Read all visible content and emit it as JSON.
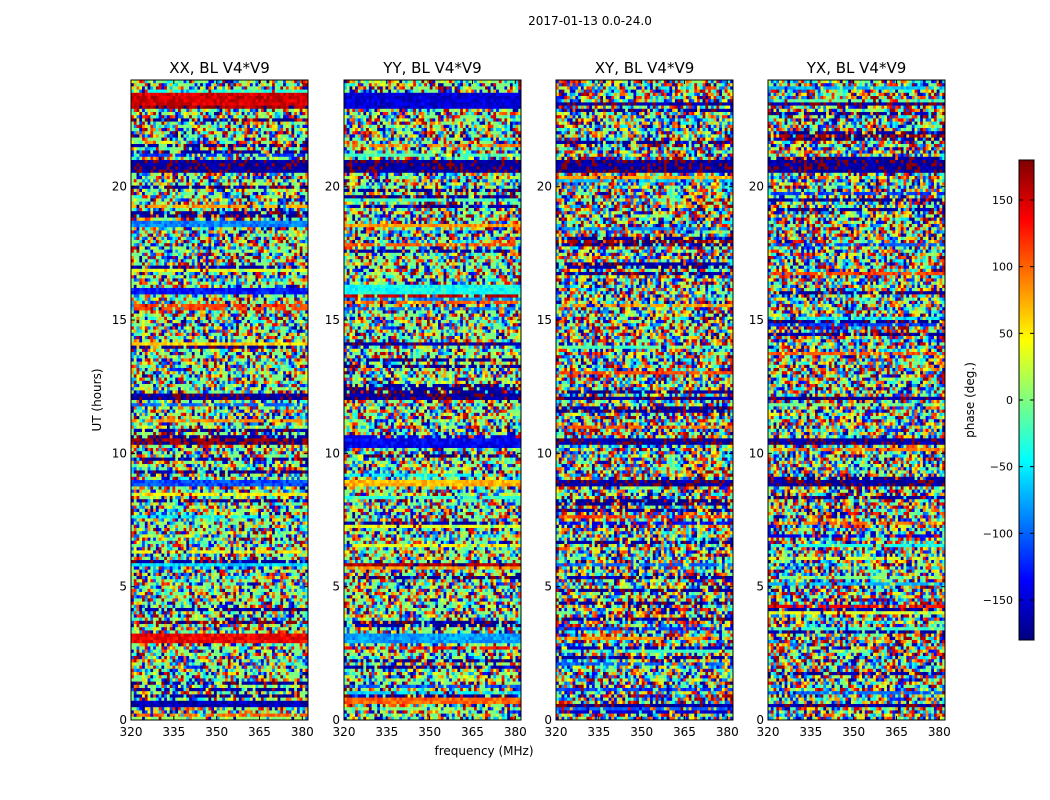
{
  "figure": {
    "suptitle": "2017-01-13 0.0-24.0"
  },
  "chart_data": {
    "type": "heatmap",
    "title": "2017-01-13 0.0-24.0",
    "xlabel": "frequency (MHz)",
    "ylabel": "UT (hours)",
    "xlim": [
      320,
      382
    ],
    "ylim": [
      0,
      24
    ],
    "xticks": [
      "320",
      "335",
      "350",
      "365",
      "380"
    ],
    "yticks": [
      "0",
      "5",
      "10",
      "15",
      "20"
    ],
    "colorbar": {
      "label": "phase (deg.)",
      "range": [
        -180,
        180
      ],
      "ticks": [
        "150",
        "100",
        "50",
        "0",
        "−50",
        "−100",
        "−150"
      ],
      "tick_values": [
        150,
        100,
        50,
        0,
        -50,
        -100,
        -150
      ],
      "colormap": "jet",
      "colors": [
        "#00007f",
        "#0000ff",
        "#007fff",
        "#00ffff",
        "#7fff7f",
        "#ffff00",
        "#ff7f00",
        "#ff0000",
        "#7f0000"
      ]
    },
    "panels": [
      {
        "title": "XX, BL V4*V9",
        "noise": 0.75,
        "bands": [
          {
            "t0": 23.1,
            "t1": 23.5,
            "phase": 150
          },
          {
            "t0": 22.9,
            "t1": 23.05,
            "phase": 170
          },
          {
            "t0": 20.5,
            "t1": 21.0,
            "phase": -170
          },
          {
            "t0": 18.5,
            "t1": 18.75,
            "phase": -90
          },
          {
            "t0": 16.0,
            "t1": 16.25,
            "phase": -130
          },
          {
            "t0": 14.0,
            "t1": 14.1,
            "phase": 60
          },
          {
            "t0": 12.0,
            "t1": 12.2,
            "phase": -170
          },
          {
            "t0": 10.3,
            "t1": 10.5,
            "phase": 175
          },
          {
            "t0": 8.8,
            "t1": 9.0,
            "phase": -110
          },
          {
            "t0": 5.7,
            "t1": 5.85,
            "phase": -60
          },
          {
            "t0": 2.9,
            "t1": 3.2,
            "phase": 140
          },
          {
            "t0": 0.5,
            "t1": 0.75,
            "phase": -160
          }
        ]
      },
      {
        "title": "YY, BL V4*V9",
        "noise": 0.75,
        "bands": [
          {
            "t0": 22.9,
            "t1": 23.5,
            "phase": -150
          },
          {
            "t0": 20.5,
            "t1": 21.0,
            "phase": -170
          },
          {
            "t0": 18.5,
            "t1": 18.65,
            "phase": 80
          },
          {
            "t0": 16.0,
            "t1": 16.3,
            "phase": -40
          },
          {
            "t0": 14.0,
            "t1": 14.15,
            "phase": -170
          },
          {
            "t0": 12.0,
            "t1": 12.2,
            "phase": -170
          },
          {
            "t0": 10.2,
            "t1": 10.6,
            "phase": -140
          },
          {
            "t0": 8.8,
            "t1": 8.95,
            "phase": 70
          },
          {
            "t0": 5.75,
            "t1": 5.9,
            "phase": 165
          },
          {
            "t0": 2.9,
            "t1": 3.3,
            "phase": -80
          },
          {
            "t0": 0.6,
            "t1": 0.85,
            "phase": 100
          }
        ]
      },
      {
        "title": "XY, BL V4*V9",
        "noise": 0.9,
        "bands": [
          {
            "t0": 23.0,
            "t1": 23.15,
            "phase": -170
          },
          {
            "t0": 20.5,
            "t1": 21.0,
            "phase": -170
          },
          {
            "t0": 12.0,
            "t1": 12.15,
            "phase": -170
          },
          {
            "t0": 10.3,
            "t1": 10.5,
            "phase": -170
          },
          {
            "t0": 8.8,
            "t1": 8.95,
            "phase": -170
          },
          {
            "t0": 0.5,
            "t1": 0.65,
            "phase": -170
          }
        ]
      },
      {
        "title": "YX, BL V4*V9",
        "noise": 0.9,
        "bands": [
          {
            "t0": 23.0,
            "t1": 23.15,
            "phase": -170
          },
          {
            "t0": 20.5,
            "t1": 21.0,
            "phase": -170
          },
          {
            "t0": 12.0,
            "t1": 12.15,
            "phase": -170
          },
          {
            "t0": 10.3,
            "t1": 10.5,
            "phase": -170
          },
          {
            "t0": 8.8,
            "t1": 8.95,
            "phase": -170
          },
          {
            "t0": 0.5,
            "t1": 0.65,
            "phase": -170
          }
        ]
      }
    ]
  }
}
